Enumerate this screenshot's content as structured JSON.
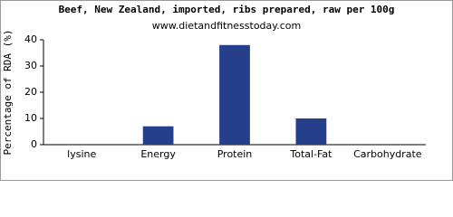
{
  "chart_data": {
    "type": "bar",
    "title": "Beef, New Zealand, imported, ribs prepared, raw per 100g",
    "subtitle": "www.dietandfitnesstoday.com",
    "y_label": "Percentage of RDA (%)",
    "categories": [
      "lysine",
      "Energy",
      "Protein",
      "Total-Fat",
      "Carbohydrate"
    ],
    "values": [
      0,
      7,
      38,
      10,
      0
    ],
    "color": "#263f8a",
    "ylim": [
      0,
      40
    ],
    "yticks": [
      0,
      10,
      20,
      30,
      40
    ],
    "grid": false
  }
}
